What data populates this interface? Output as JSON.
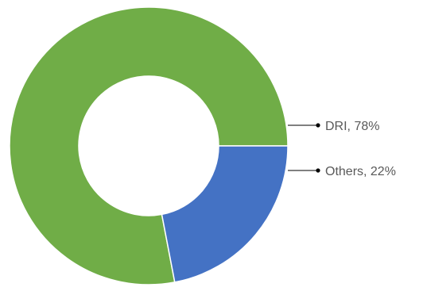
{
  "chart_data": {
    "type": "pie",
    "variant": "donut",
    "slices": [
      {
        "label": "DRI",
        "value": 78,
        "percent_label": "78%",
        "color": "#70AD47"
      },
      {
        "label": "Others",
        "value": 22,
        "percent_label": "22%",
        "color": "#4472C4"
      }
    ],
    "title": "",
    "legend": "none",
    "data_labels": "outside-right-with-leader-lines",
    "label_color": "#595959"
  }
}
